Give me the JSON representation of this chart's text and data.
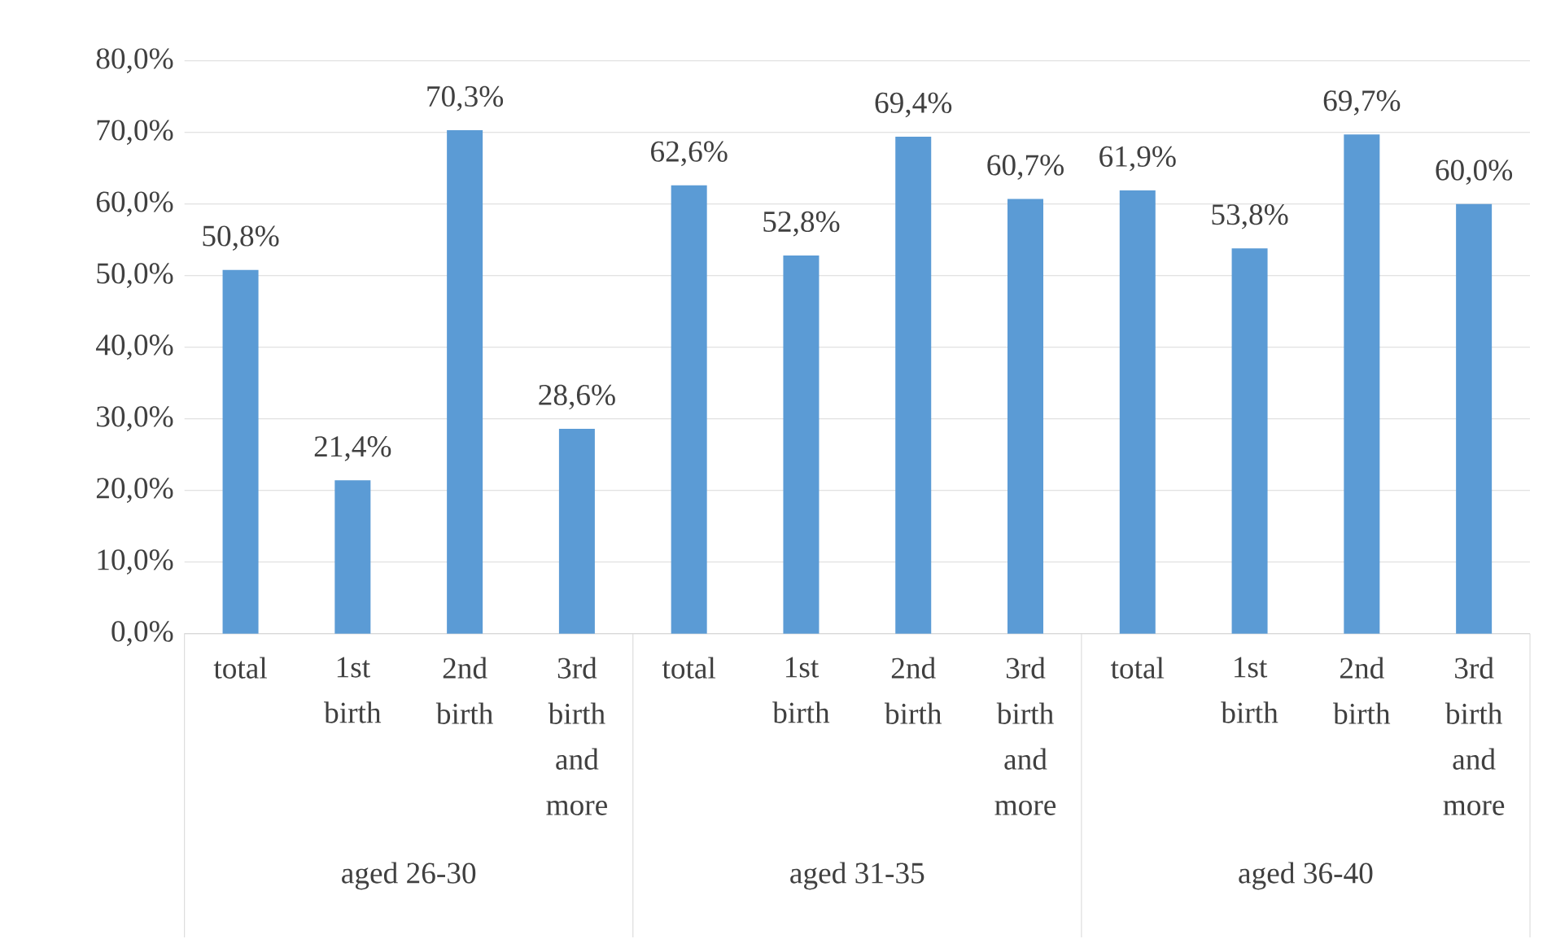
{
  "chart_data": {
    "type": "bar",
    "categories": [
      "total",
      "1st birth",
      "2nd birth",
      "3rd birth and more",
      "total",
      "1st birth",
      "2nd birth",
      "3rd birth and more",
      "total",
      "1st birth",
      "2nd birth",
      "3rd birth and more"
    ],
    "values": [
      50.8,
      21.4,
      70.3,
      28.6,
      62.6,
      52.8,
      69.4,
      60.7,
      61.9,
      53.8,
      69.7,
      60.0
    ],
    "value_labels": [
      "50,8%",
      "21,4%",
      "70,3%",
      "28,6%",
      "62,6%",
      "52,8%",
      "69,4%",
      "60,7%",
      "61,9%",
      "53,8%",
      "69,7%",
      "60,0%"
    ],
    "color": "#5b9bd5",
    "ylim": [
      0,
      80
    ],
    "yticks": [
      {
        "value": 0,
        "label": "0,0%"
      },
      {
        "value": 10,
        "label": "10,0%"
      },
      {
        "value": 20,
        "label": "20,0%"
      },
      {
        "value": 30,
        "label": "30,0%"
      },
      {
        "value": 40,
        "label": "40,0%"
      },
      {
        "value": 50,
        "label": "50,0%"
      },
      {
        "value": 60,
        "label": "60,0%"
      },
      {
        "value": 70,
        "label": "70,0%"
      },
      {
        "value": 80,
        "label": "80,0%"
      }
    ],
    "grid": "y",
    "annotations": [
      "aged 26-30",
      "aged 31-35",
      "aged 36-40"
    ]
  }
}
